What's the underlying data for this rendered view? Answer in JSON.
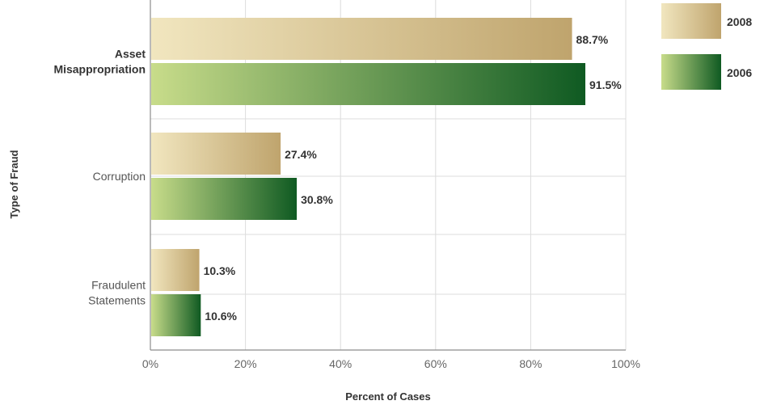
{
  "chart_data": {
    "type": "bar",
    "orientation": "horizontal",
    "categories": [
      "Asset Misappropriation",
      "Corruption",
      "Fraudulent Statements"
    ],
    "category_lines": [
      [
        "Asset",
        "Misappropriation"
      ],
      [
        "Corruption"
      ],
      [
        "Fraudulent",
        "Statements"
      ]
    ],
    "series": [
      {
        "name": "2008",
        "values": [
          88.7,
          27.4,
          10.3
        ],
        "labels": [
          "88.7%",
          "27.4%",
          "10.3%"
        ]
      },
      {
        "name": "2006",
        "values": [
          91.5,
          30.8,
          10.6
        ],
        "labels": [
          "91.5%",
          "30.8%",
          "10.6%"
        ]
      }
    ],
    "xlabel": "Percent of Cases",
    "ylabel": "Type of Fraud",
    "xlim": [
      0,
      100
    ],
    "xticks": [
      0,
      20,
      40,
      60,
      80,
      100
    ],
    "xtick_labels": [
      "0%",
      "20%",
      "40%",
      "60%",
      "80%",
      "100%"
    ],
    "grid": true,
    "legend_position": "top-right"
  },
  "colors": {
    "series_2008": {
      "light": "#f1e6bf",
      "dark": "#bfa46d"
    },
    "series_2006": {
      "light": "#c8dc8a",
      "dark": "#0f5a22"
    },
    "grid": "#dcdcdc",
    "axis": "#8c8c8c",
    "text": "#333333",
    "tick_text": "#666666"
  }
}
